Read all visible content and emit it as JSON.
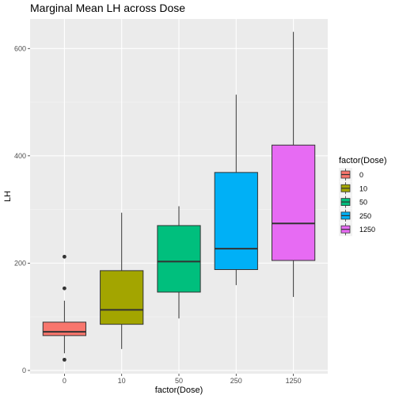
{
  "chart_data": {
    "type": "box",
    "title": "Marginal Mean LH across Dose",
    "xlabel": "factor(Dose)",
    "ylabel": "LH",
    "ylim": [
      -6,
      655
    ],
    "yticks": [
      0,
      200,
      400,
      600
    ],
    "grid": true,
    "legend": {
      "title": "factor(Dose)",
      "placement": "right"
    },
    "categories": [
      "0",
      "10",
      "50",
      "250",
      "1250"
    ],
    "boxes": [
      {
        "category": "0",
        "color": "#F8766D",
        "whisker_low": 32,
        "q1": 65,
        "median": 72,
        "q3": 90,
        "whisker_high": 130,
        "outliers": [
          212,
          153,
          20
        ]
      },
      {
        "category": "10",
        "color": "#A3A500",
        "whisker_low": 40,
        "q1": 86,
        "median": 113,
        "q3": 186,
        "whisker_high": 294,
        "outliers": []
      },
      {
        "category": "50",
        "color": "#00BF7D",
        "whisker_low": 97,
        "q1": 146,
        "median": 203,
        "q3": 270,
        "whisker_high": 306,
        "outliers": []
      },
      {
        "category": "250",
        "color": "#00B0F6",
        "whisker_low": 159,
        "q1": 188,
        "median": 227,
        "q3": 369,
        "whisker_high": 514,
        "outliers": []
      },
      {
        "category": "1250",
        "color": "#E76BF3",
        "whisker_low": 137,
        "q1": 205,
        "median": 274,
        "q3": 420,
        "whisker_high": 631,
        "outliers": []
      }
    ]
  }
}
